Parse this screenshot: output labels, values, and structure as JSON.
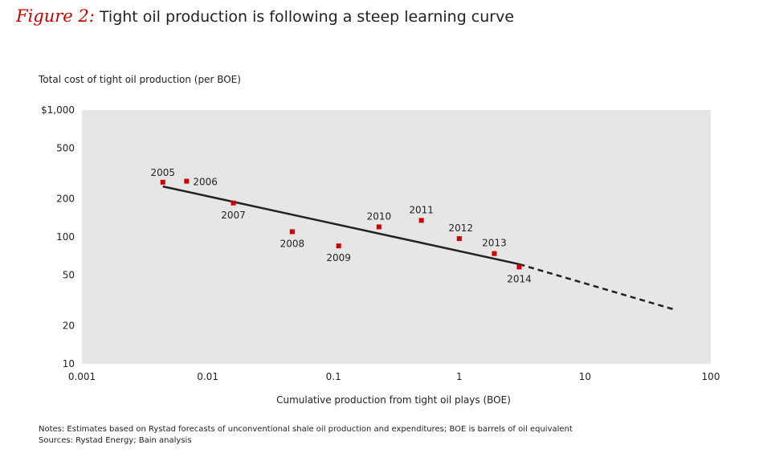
{
  "header": {
    "figure_label": "Figure 2:",
    "title": "Tight oil production is following a steep learning curve"
  },
  "chart_data": {
    "type": "scatter",
    "title": "Tight oil production is following a steep learning curve",
    "xlabel": "Cumulative production from tight oil plays (BOE)",
    "ylabel": "Total cost of tight oil production (per BOE)",
    "x_scale": "log",
    "y_scale": "log",
    "xlim": [
      0.001,
      100
    ],
    "ylim": [
      10,
      1000
    ],
    "x_ticks": [
      0.001,
      0.01,
      0.1,
      1,
      10,
      100
    ],
    "x_tick_labels": [
      "0.001",
      "0.01",
      "0.1",
      "1",
      "10",
      "100"
    ],
    "y_ticks": [
      10,
      20,
      50,
      100,
      200,
      500,
      1000
    ],
    "y_tick_labels": [
      "10",
      "20",
      "50",
      "100",
      "200",
      "500",
      "$1,000"
    ],
    "grid": false,
    "background": "#e6e6e6",
    "marker_color": "#cc0000",
    "line_color": "#222222",
    "points": [
      {
        "label": "2005",
        "x": 0.0044,
        "y": 270
      },
      {
        "label": "2006",
        "x": 0.0068,
        "y": 275
      },
      {
        "label": "2007",
        "x": 0.016,
        "y": 185
      },
      {
        "label": "2008",
        "x": 0.047,
        "y": 110
      },
      {
        "label": "2009",
        "x": 0.11,
        "y": 85
      },
      {
        "label": "2010",
        "x": 0.23,
        "y": 120
      },
      {
        "label": "2011",
        "x": 0.5,
        "y": 135
      },
      {
        "label": "2012",
        "x": 1.0,
        "y": 97
      },
      {
        "label": "2013",
        "x": 1.9,
        "y": 74
      },
      {
        "label": "2014",
        "x": 3.0,
        "y": 58
      }
    ],
    "trend_line": {
      "solid": [
        [
          0.0044,
          250
        ],
        [
          3.0,
          61
        ]
      ],
      "dashed": [
        [
          3.0,
          61
        ],
        [
          50,
          27
        ]
      ]
    }
  },
  "footer": {
    "notes": "Notes: Estimates based on Rystad forecasts of unconventional shale oil production and expenditures; BOE is barrels of oil equivalent",
    "sources": "Sources: Rystad Energy; Bain analysis"
  }
}
